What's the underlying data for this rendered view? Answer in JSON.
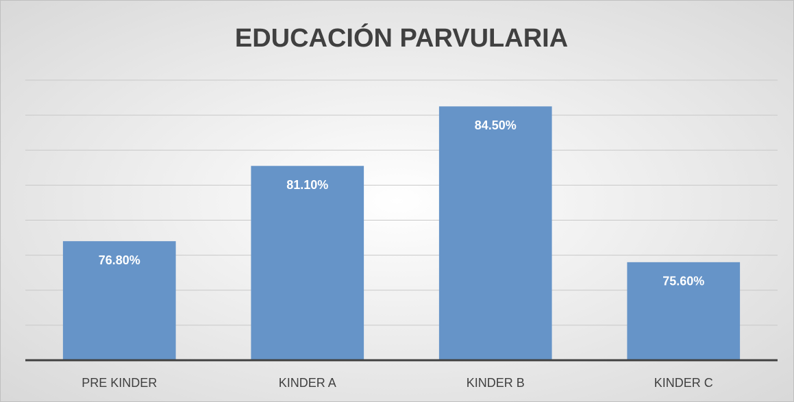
{
  "chart_data": {
    "type": "bar",
    "title": "EDUCACIÓN PARVULARIA",
    "categories": [
      "PRE KINDER",
      "KINDER A",
      "KINDER B",
      "KINDER C"
    ],
    "values": [
      76.8,
      81.1,
      84.5,
      75.6
    ],
    "value_labels": [
      "76.80%",
      "81.10%",
      "84.50%",
      "75.60%"
    ],
    "color": "#6694c8",
    "ylim": [
      70,
      86
    ],
    "yticks": [
      70,
      72,
      74,
      76,
      78,
      80,
      82,
      84,
      86
    ],
    "grid": true
  }
}
